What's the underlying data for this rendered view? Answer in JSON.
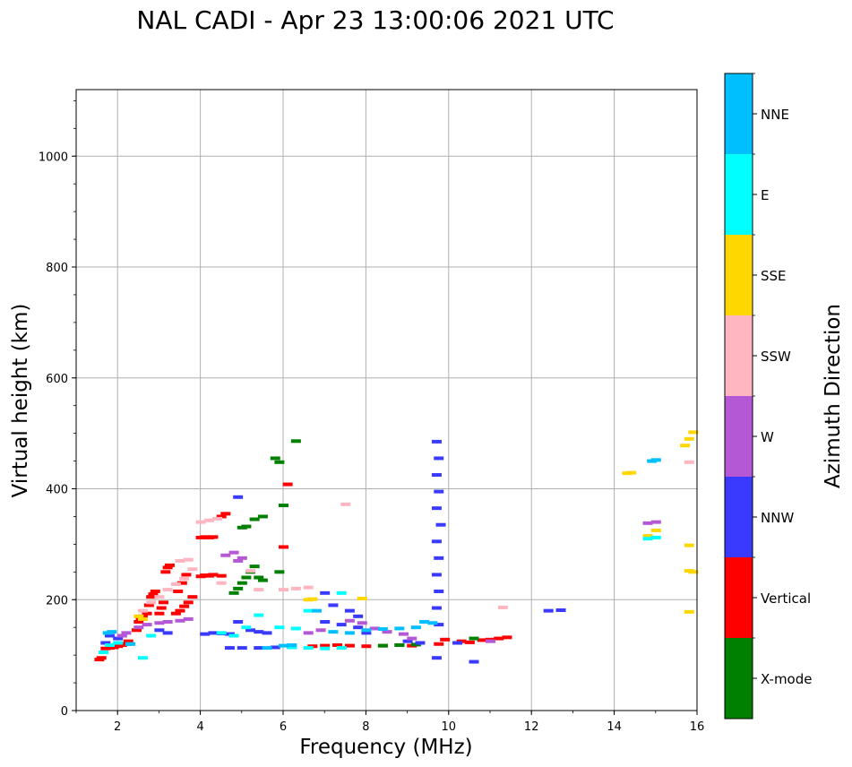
{
  "chart_data": {
    "type": "scatter",
    "title": "NAL CADI - Apr 23 13:00:06 2021 UTC",
    "xlabel": "Frequency (MHz)",
    "ylabel": "Virtual height (km)",
    "xlim": [
      1,
      16
    ],
    "ylim": [
      0,
      1120
    ],
    "xticks": [
      2,
      4,
      6,
      8,
      10,
      12,
      14,
      16
    ],
    "yticks": [
      0,
      200,
      400,
      600,
      800,
      1000
    ],
    "grid": true,
    "colorbar": {
      "label": "Azimuth Direction",
      "categories": [
        "X-mode",
        "Vertical",
        "NNW",
        "W",
        "SSW",
        "SSE",
        "E",
        "NNE"
      ],
      "colors": [
        "#008000",
        "#ff0000",
        "#3a3aff",
        "#b558d6",
        "#ffb6c1",
        "#ffd700",
        "#00ffff",
        "#00bfff"
      ]
    },
    "series": [
      {
        "name": "Vertical",
        "color": "#ff0000",
        "points": [
          [
            1.55,
            92
          ],
          [
            1.6,
            95
          ],
          [
            1.7,
            112
          ],
          [
            1.8,
            113
          ],
          [
            1.9,
            114
          ],
          [
            2.0,
            116
          ],
          [
            2.1,
            118
          ],
          [
            2.2,
            120
          ],
          [
            2.25,
            125
          ],
          [
            2.45,
            145
          ],
          [
            2.5,
            160
          ],
          [
            2.55,
            165
          ],
          [
            2.6,
            170
          ],
          [
            2.7,
            175
          ],
          [
            2.75,
            190
          ],
          [
            2.8,
            205
          ],
          [
            2.85,
            210
          ],
          [
            2.9,
            215
          ],
          [
            3.0,
            175
          ],
          [
            3.05,
            185
          ],
          [
            3.1,
            195
          ],
          [
            3.15,
            250
          ],
          [
            3.2,
            258
          ],
          [
            3.25,
            262
          ],
          [
            3.4,
            175
          ],
          [
            3.5,
            180
          ],
          [
            3.6,
            188
          ],
          [
            3.7,
            195
          ],
          [
            3.8,
            205
          ],
          [
            3.45,
            215
          ],
          [
            3.55,
            230
          ],
          [
            3.65,
            245
          ],
          [
            4.0,
            242
          ],
          [
            4.1,
            244
          ],
          [
            4.2,
            243
          ],
          [
            4.3,
            245
          ],
          [
            4.5,
            243
          ],
          [
            4.0,
            312
          ],
          [
            4.1,
            313
          ],
          [
            4.2,
            312
          ],
          [
            4.3,
            313
          ],
          [
            4.5,
            350
          ],
          [
            4.6,
            355
          ],
          [
            6.0,
            295
          ],
          [
            6.1,
            408
          ],
          [
            6.7,
            116
          ],
          [
            7.0,
            117
          ],
          [
            7.3,
            118
          ],
          [
            7.6,
            117
          ],
          [
            8.0,
            116
          ],
          [
            8.4,
            117
          ],
          [
            8.8,
            118
          ],
          [
            9.1,
            117
          ],
          [
            9.75,
            120
          ],
          [
            9.9,
            128
          ],
          [
            10.3,
            125
          ],
          [
            10.5,
            123
          ],
          [
            10.8,
            127
          ],
          [
            11.0,
            128
          ],
          [
            11.2,
            130
          ],
          [
            11.4,
            132
          ]
        ]
      },
      {
        "name": "X-mode",
        "color": "#008000",
        "points": [
          [
            4.8,
            212
          ],
          [
            4.9,
            220
          ],
          [
            5.0,
            230
          ],
          [
            5.1,
            240
          ],
          [
            5.2,
            250
          ],
          [
            5.3,
            260
          ],
          [
            5.4,
            240
          ],
          [
            5.5,
            235
          ],
          [
            5.0,
            330
          ],
          [
            5.1,
            332
          ],
          [
            5.3,
            345
          ],
          [
            5.5,
            350
          ],
          [
            5.9,
            250
          ],
          [
            6.0,
            370
          ],
          [
            5.8,
            455
          ],
          [
            5.9,
            448
          ],
          [
            6.3,
            486
          ],
          [
            8.4,
            117
          ],
          [
            8.8,
            118
          ],
          [
            9.2,
            119
          ],
          [
            10.6,
            130
          ]
        ]
      },
      {
        "name": "NNW",
        "color": "#3a3aff",
        "points": [
          [
            1.7,
            122
          ],
          [
            1.8,
            135
          ],
          [
            2.0,
            130
          ],
          [
            3.0,
            145
          ],
          [
            3.2,
            140
          ],
          [
            4.1,
            138
          ],
          [
            4.3,
            140
          ],
          [
            4.5,
            139
          ],
          [
            4.7,
            138
          ],
          [
            4.9,
            385
          ],
          [
            4.9,
            160
          ],
          [
            5.2,
            145
          ],
          [
            5.4,
            142
          ],
          [
            5.6,
            140
          ],
          [
            4.7,
            113
          ],
          [
            5.0,
            113
          ],
          [
            5.4,
            113
          ],
          [
            5.8,
            114
          ],
          [
            6.2,
            115
          ],
          [
            7.0,
            212
          ],
          [
            7.2,
            190
          ],
          [
            7.6,
            180
          ],
          [
            7.8,
            170
          ],
          [
            7.0,
            160
          ],
          [
            7.4,
            155
          ],
          [
            7.8,
            150
          ],
          [
            8.0,
            140
          ],
          [
            9.0,
            125
          ],
          [
            9.3,
            122
          ],
          [
            9.7,
            485
          ],
          [
            9.75,
            455
          ],
          [
            9.7,
            425
          ],
          [
            9.75,
            395
          ],
          [
            9.7,
            365
          ],
          [
            9.8,
            335
          ],
          [
            9.7,
            305
          ],
          [
            9.75,
            275
          ],
          [
            9.7,
            245
          ],
          [
            9.75,
            215
          ],
          [
            9.7,
            185
          ],
          [
            9.75,
            155
          ],
          [
            9.7,
            95
          ],
          [
            10.2,
            122
          ],
          [
            10.6,
            88
          ],
          [
            12.4,
            180
          ],
          [
            12.7,
            181
          ]
        ]
      },
      {
        "name": "W",
        "color": "#b558d6",
        "points": [
          [
            2.1,
            135
          ],
          [
            2.2,
            140
          ],
          [
            2.5,
            150
          ],
          [
            2.7,
            155
          ],
          [
            3.0,
            158
          ],
          [
            3.2,
            160
          ],
          [
            3.5,
            162
          ],
          [
            3.7,
            165
          ],
          [
            4.6,
            280
          ],
          [
            4.8,
            285
          ],
          [
            5.0,
            275
          ],
          [
            4.9,
            270
          ],
          [
            6.6,
            140
          ],
          [
            6.9,
            145
          ],
          [
            7.6,
            162
          ],
          [
            7.9,
            158
          ],
          [
            8.2,
            148
          ],
          [
            8.5,
            142
          ],
          [
            8.9,
            138
          ],
          [
            9.1,
            130
          ],
          [
            11.0,
            125
          ],
          [
            14.8,
            338
          ],
          [
            15.0,
            340
          ]
        ]
      },
      {
        "name": "SSW",
        "color": "#ffb6c1",
        "points": [
          [
            2.6,
            180
          ],
          [
            2.8,
            195
          ],
          [
            3.0,
            205
          ],
          [
            3.2,
            218
          ],
          [
            3.4,
            228
          ],
          [
            3.6,
            238
          ],
          [
            3.8,
            255
          ],
          [
            3.5,
            270
          ],
          [
            3.7,
            272
          ],
          [
            4.0,
            340
          ],
          [
            4.2,
            343
          ],
          [
            4.4,
            346
          ],
          [
            4.5,
            230
          ],
          [
            5.2,
            252
          ],
          [
            5.4,
            218
          ],
          [
            6.0,
            218
          ],
          [
            6.3,
            220
          ],
          [
            6.6,
            222
          ],
          [
            7.5,
            372
          ],
          [
            11.3,
            186
          ],
          [
            15.8,
            448
          ]
        ]
      },
      {
        "name": "SSE",
        "color": "#ffd700",
        "points": [
          [
            2.5,
            170
          ],
          [
            2.6,
            165
          ],
          [
            6.6,
            200
          ],
          [
            6.7,
            201
          ],
          [
            7.9,
            202
          ],
          [
            14.3,
            428
          ],
          [
            14.4,
            429
          ],
          [
            14.8,
            315
          ],
          [
            15.0,
            325
          ],
          [
            15.8,
            298
          ],
          [
            15.9,
            250
          ],
          [
            15.8,
            252
          ],
          [
            15.7,
            478
          ],
          [
            15.8,
            490
          ],
          [
            15.9,
            502
          ],
          [
            15.8,
            178
          ]
        ]
      },
      {
        "name": "E",
        "color": "#00ffff",
        "points": [
          [
            1.65,
            105
          ],
          [
            1.8,
            118
          ],
          [
            2.0,
            122
          ],
          [
            2.3,
            120
          ],
          [
            2.6,
            95
          ],
          [
            2.8,
            135
          ],
          [
            4.5,
            140
          ],
          [
            4.8,
            135
          ],
          [
            5.1,
            150
          ],
          [
            5.4,
            172
          ],
          [
            5.9,
            150
          ],
          [
            6.3,
            148
          ],
          [
            6.6,
            180
          ],
          [
            7.4,
            212
          ],
          [
            6.2,
            114
          ],
          [
            6.6,
            113
          ],
          [
            7.0,
            112
          ],
          [
            7.4,
            113
          ],
          [
            14.8,
            310
          ],
          [
            15.0,
            312
          ]
        ]
      },
      {
        "name": "NNE",
        "color": "#00bfff",
        "points": [
          [
            1.75,
            140
          ],
          [
            1.85,
            142
          ],
          [
            2.3,
            120
          ],
          [
            6.8,
            180
          ],
          [
            7.2,
            142
          ],
          [
            7.6,
            140
          ],
          [
            8.0,
            145
          ],
          [
            8.4,
            147
          ],
          [
            8.8,
            148
          ],
          [
            9.2,
            150
          ],
          [
            9.4,
            160
          ],
          [
            9.6,
            158
          ],
          [
            6.0,
            117
          ],
          [
            6.2,
            118
          ],
          [
            5.6,
            113
          ],
          [
            14.9,
            450
          ],
          [
            15.0,
            452
          ]
        ]
      }
    ]
  }
}
